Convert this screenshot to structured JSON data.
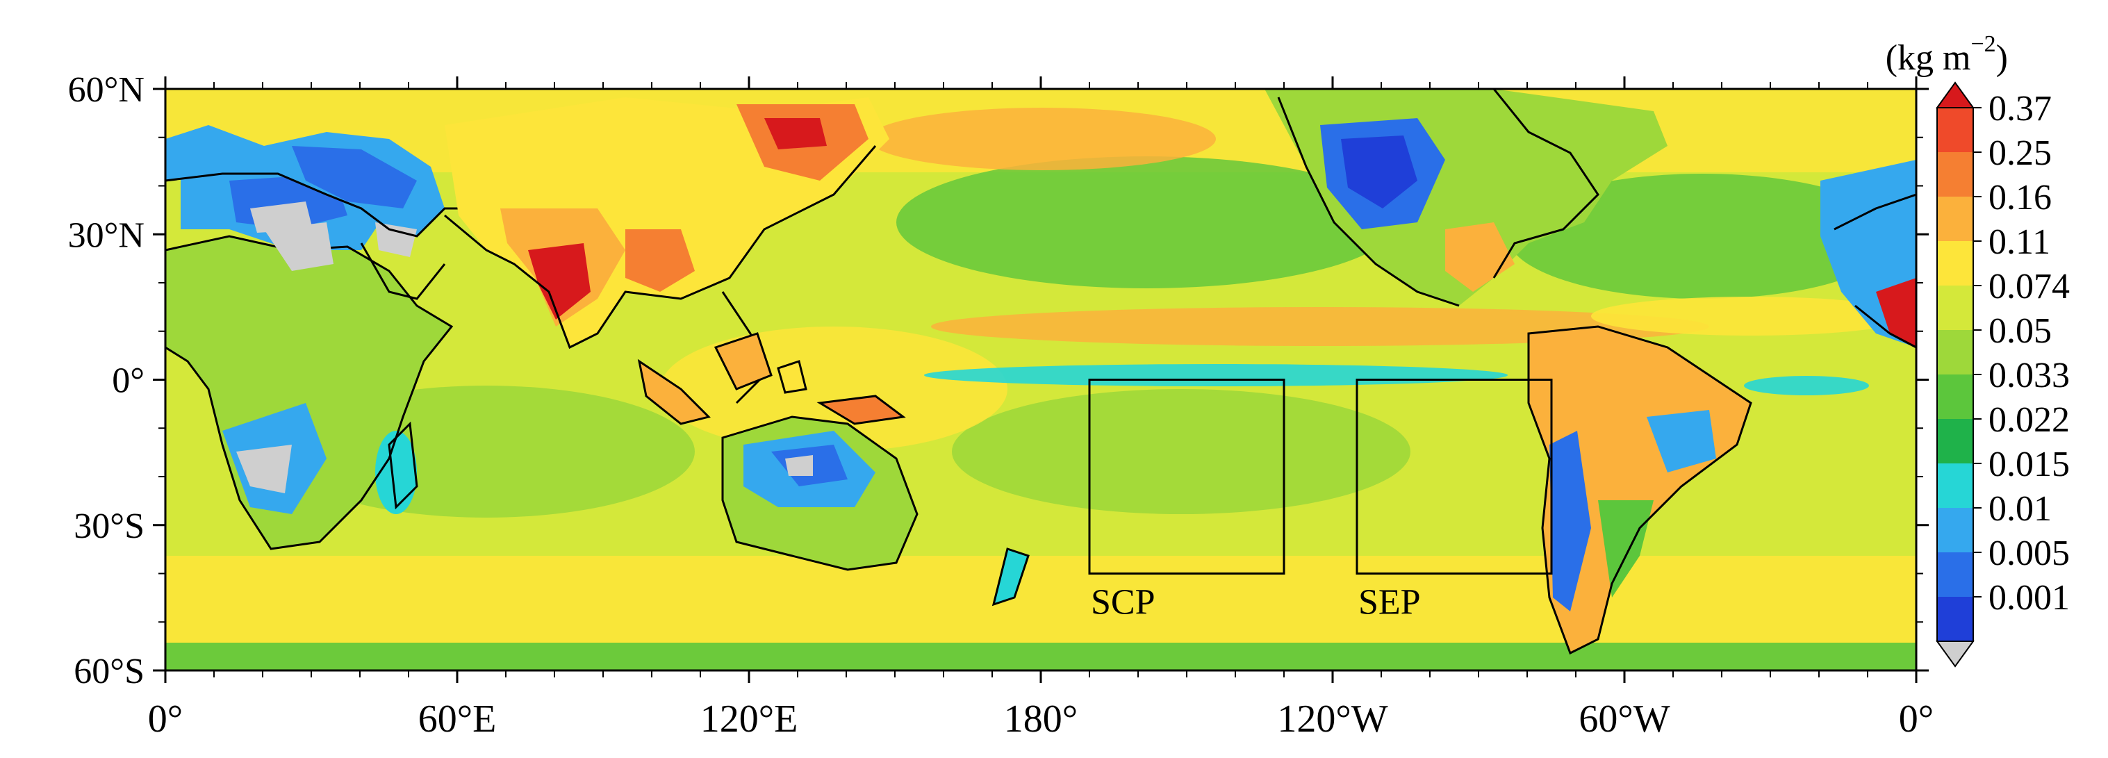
{
  "map": {
    "lat_labels": [
      "60°N",
      "30°N",
      "0°",
      "30°S",
      "60°S"
    ],
    "lon_labels": [
      "0°",
      "60°E",
      "120°E",
      "180°",
      "120°W",
      "60°W",
      "0°"
    ],
    "lat_values": [
      60,
      30,
      0,
      -30,
      -60
    ],
    "lon_values": [
      0,
      60,
      120,
      180,
      240,
      300,
      360
    ],
    "lat_range": [
      -60,
      60
    ],
    "lon_range": [
      0,
      360
    ],
    "boxes": [
      {
        "label": "SCP",
        "lon": [
          190,
          230
        ],
        "lat": [
          -40,
          0
        ]
      },
      {
        "label": "SEP",
        "lon": [
          245,
          285
        ],
        "lat": [
          -40,
          0
        ]
      }
    ]
  },
  "colorbar": {
    "unit_main": "(kg m",
    "unit_sup": "−2",
    "unit_close": ")",
    "levels": [
      "0.37",
      "0.25",
      "0.16",
      "0.11",
      "0.074",
      "0.05",
      "0.033",
      "0.022",
      "0.015",
      "0.01",
      "0.005",
      "0.001"
    ],
    "colors": [
      "#d7191c",
      "#ef4a2a",
      "#f57f32",
      "#fbb13c",
      "#fde53a",
      "#d4e83a",
      "#9ed83a",
      "#5cc63c",
      "#1fb24a",
      "#26d6d6",
      "#35a8ee",
      "#2a6fe8",
      "#1f3fd8"
    ],
    "min_color": "#cfcfcf"
  },
  "palette": {
    "ocean_base": "#d4e83a",
    "land_outline": "#000000"
  }
}
